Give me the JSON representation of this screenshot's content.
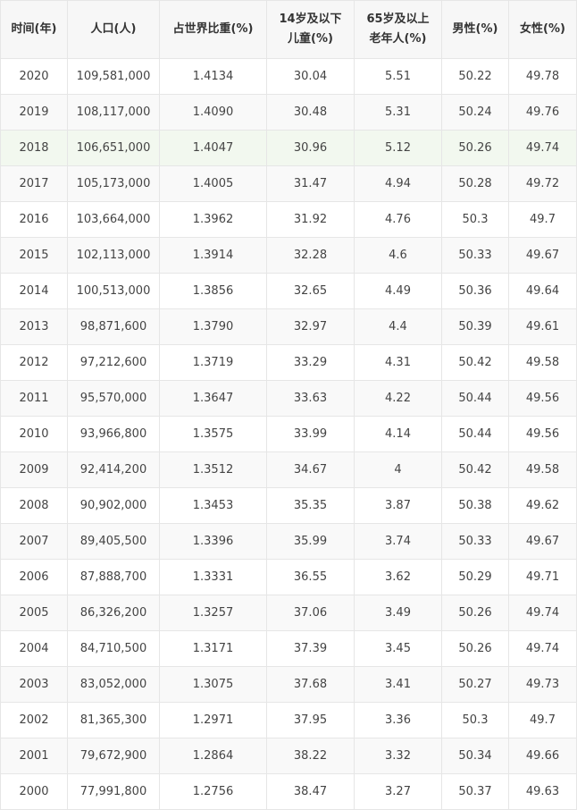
{
  "chart_data": {
    "type": "table",
    "columns": [
      {
        "lines": [
          "时间(年)"
        ]
      },
      {
        "lines": [
          "人口(人)"
        ]
      },
      {
        "lines": [
          "占世界比重(%)"
        ]
      },
      {
        "lines": [
          "14岁及以下",
          "儿童(%)"
        ]
      },
      {
        "lines": [
          "65岁及以上",
          "老年人(%)"
        ]
      },
      {
        "lines": [
          "男性(%)"
        ]
      },
      {
        "lines": [
          "女性(%)"
        ]
      }
    ],
    "highlight_row": 2,
    "rows": [
      [
        "2020",
        "109,581,000",
        "1.4134",
        "30.04",
        "5.51",
        "50.22",
        "49.78"
      ],
      [
        "2019",
        "108,117,000",
        "1.4090",
        "30.48",
        "5.31",
        "50.24",
        "49.76"
      ],
      [
        "2018",
        "106,651,000",
        "1.4047",
        "30.96",
        "5.12",
        "50.26",
        "49.74"
      ],
      [
        "2017",
        "105,173,000",
        "1.4005",
        "31.47",
        "4.94",
        "50.28",
        "49.72"
      ],
      [
        "2016",
        "103,664,000",
        "1.3962",
        "31.92",
        "4.76",
        "50.3",
        "49.7"
      ],
      [
        "2015",
        "102,113,000",
        "1.3914",
        "32.28",
        "4.6",
        "50.33",
        "49.67"
      ],
      [
        "2014",
        "100,513,000",
        "1.3856",
        "32.65",
        "4.49",
        "50.36",
        "49.64"
      ],
      [
        "2013",
        "98,871,600",
        "1.3790",
        "32.97",
        "4.4",
        "50.39",
        "49.61"
      ],
      [
        "2012",
        "97,212,600",
        "1.3719",
        "33.29",
        "4.31",
        "50.42",
        "49.58"
      ],
      [
        "2011",
        "95,570,000",
        "1.3647",
        "33.63",
        "4.22",
        "50.44",
        "49.56"
      ],
      [
        "2010",
        "93,966,800",
        "1.3575",
        "33.99",
        "4.14",
        "50.44",
        "49.56"
      ],
      [
        "2009",
        "92,414,200",
        "1.3512",
        "34.67",
        "4",
        "50.42",
        "49.58"
      ],
      [
        "2008",
        "90,902,000",
        "1.3453",
        "35.35",
        "3.87",
        "50.38",
        "49.62"
      ],
      [
        "2007",
        "89,405,500",
        "1.3396",
        "35.99",
        "3.74",
        "50.33",
        "49.67"
      ],
      [
        "2006",
        "87,888,700",
        "1.3331",
        "36.55",
        "3.62",
        "50.29",
        "49.71"
      ],
      [
        "2005",
        "86,326,200",
        "1.3257",
        "37.06",
        "3.49",
        "50.26",
        "49.74"
      ],
      [
        "2004",
        "84,710,500",
        "1.3171",
        "37.39",
        "3.45",
        "50.26",
        "49.74"
      ],
      [
        "2003",
        "83,052,000",
        "1.3075",
        "37.68",
        "3.41",
        "50.27",
        "49.73"
      ],
      [
        "2002",
        "81,365,300",
        "1.2971",
        "37.95",
        "3.36",
        "50.3",
        "49.7"
      ],
      [
        "2001",
        "79,672,900",
        "1.2864",
        "38.22",
        "3.32",
        "50.34",
        "49.66"
      ],
      [
        "2000",
        "77,991,800",
        "1.2756",
        "38.47",
        "3.27",
        "50.37",
        "49.63"
      ]
    ]
  },
  "colors": {
    "border": "#e6e6e6",
    "header_bg": "#f7f7f7",
    "stripe_bg": "#f9f9f9",
    "highlight_bg": "#f2f8ef",
    "text": "#333333"
  }
}
